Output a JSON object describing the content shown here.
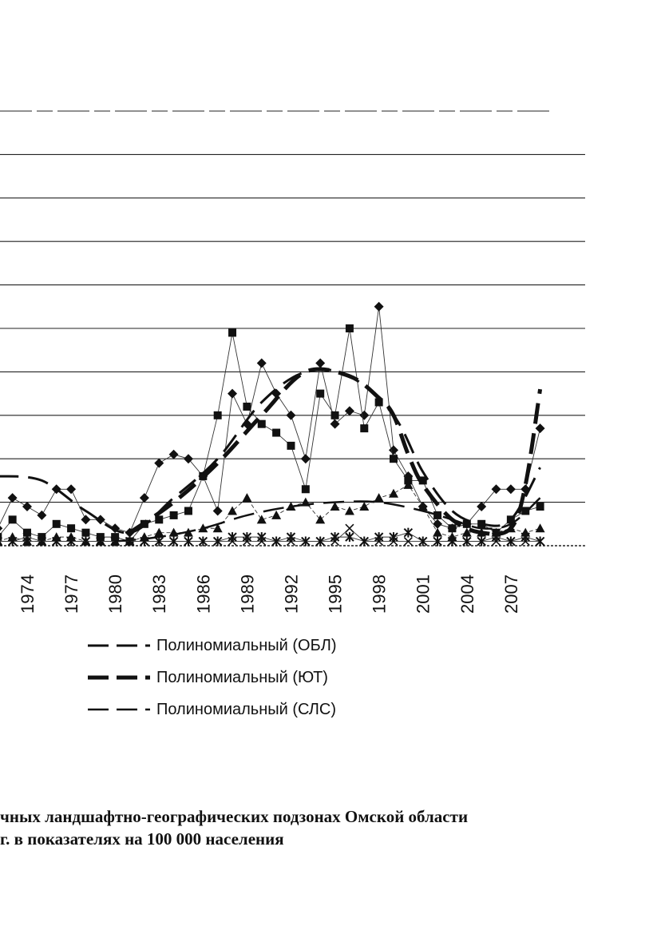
{
  "chart_data": {
    "type": "line",
    "x": [
      1972,
      1973,
      1974,
      1975,
      1976,
      1977,
      1978,
      1979,
      1980,
      1981,
      1982,
      1983,
      1984,
      1985,
      1986,
      1987,
      1988,
      1989,
      1990,
      1991,
      1992,
      1993,
      1994,
      1995,
      1996,
      1997,
      1998,
      1999,
      2000,
      2001,
      2002,
      2003,
      2004,
      2005,
      2006,
      2007,
      2008,
      2009
    ],
    "x_tick_labels": [
      "1974",
      "1977",
      "1980",
      "1983",
      "1986",
      "1989",
      "1992",
      "1995",
      "1998",
      "2001",
      "2004",
      "2007"
    ],
    "x_tick_values": [
      1974,
      1977,
      1980,
      1983,
      1986,
      1989,
      1992,
      1995,
      1998,
      2001,
      2004,
      2007
    ],
    "ylim": [
      0,
      10
    ],
    "grid": true,
    "series": [
      {
        "marker": "diamond",
        "values": [
          0.4,
          1.1,
          0.9,
          0.7,
          1.3,
          1.3,
          0.6,
          0.6,
          0.4,
          0.3,
          1.1,
          1.9,
          2.1,
          2.0,
          1.6,
          0.8,
          3.5,
          2.8,
          4.2,
          3.5,
          3.0,
          2.0,
          4.2,
          2.8,
          3.1,
          3.0,
          5.5,
          2.2,
          1.6,
          0.9,
          0.5,
          0.4,
          0.5,
          0.9,
          1.3,
          1.3,
          1.3,
          2.7
        ]
      },
      {
        "marker": "square",
        "values": [
          0.2,
          0.6,
          0.3,
          0.2,
          0.5,
          0.4,
          0.3,
          0.2,
          0.2,
          0.1,
          0.5,
          0.6,
          0.7,
          0.8,
          1.6,
          3.0,
          4.9,
          3.2,
          2.8,
          2.6,
          2.3,
          1.3,
          3.5,
          3.0,
          5.0,
          2.7,
          3.3,
          2.0,
          1.5,
          1.5,
          0.7,
          0.4,
          0.5,
          0.5,
          0.3,
          0.6,
          0.8,
          0.9
        ]
      },
      {
        "marker": "triangle",
        "values": [
          0.1,
          0.2,
          0.1,
          0.1,
          0.2,
          0.2,
          0.1,
          0.1,
          0.1,
          0.1,
          0.2,
          0.3,
          0.3,
          0.3,
          0.4,
          0.4,
          0.8,
          1.1,
          0.6,
          0.7,
          0.9,
          1.0,
          0.6,
          0.9,
          0.8,
          0.9,
          1.1,
          1.2,
          1.4,
          0.9,
          0.3,
          0.2,
          0.3,
          0.3,
          0.3,
          0.4,
          0.3,
          0.4
        ]
      },
      {
        "marker": "star",
        "values": [
          0.1,
          0.1,
          0.1,
          0.1,
          0.1,
          0.1,
          0.1,
          0.1,
          0.1,
          0.1,
          0.1,
          0.1,
          0.1,
          0.1,
          0.1,
          0.1,
          0.2,
          0.2,
          0.2,
          0.1,
          0.2,
          0.1,
          0.1,
          0.2,
          0.2,
          0.1,
          0.2,
          0.2,
          0.3,
          0.1,
          0.1,
          0.1,
          0.1,
          0.1,
          0.2,
          0.1,
          0.2,
          0.1
        ]
      },
      {
        "marker": "x",
        "values": [
          0.1,
          0.1,
          0.2,
          0.1,
          0.1,
          0.1,
          0.1,
          0.1,
          0.1,
          0.1,
          0.1,
          0.1,
          0.1,
          0.1,
          0.1,
          0.1,
          0.1,
          0.1,
          0.1,
          0.1,
          0.1,
          0.1,
          0.1,
          0.1,
          0.4,
          0.1,
          0.1,
          0.1,
          0.1,
          0.1,
          0.1,
          0.1,
          0.1,
          0.1,
          0.1,
          0.1,
          0.1,
          0.1
        ]
      }
    ],
    "trendlines": [
      {
        "name": "Полиномиальный (ОБЛ)",
        "x": [
          1972,
          1975,
          1978,
          1981,
          1984,
          1987,
          1990,
          1993,
          1996,
          1999,
          2001,
          2003,
          2005,
          2007,
          2009
        ],
        "values": [
          1.6,
          1.5,
          0.8,
          0.3,
          1.1,
          2.0,
          3.3,
          4.0,
          3.9,
          3.0,
          1.7,
          0.8,
          0.5,
          0.6,
          1.8
        ]
      },
      {
        "name": "Полиномиальный (ЮТ)",
        "x": [
          1981,
          1984,
          1987,
          1990,
          1993,
          1996,
          1998,
          1999,
          2000,
          2001,
          2003,
          2005,
          2007,
          2008,
          2009
        ],
        "values": [
          0.3,
          1.0,
          1.9,
          3.0,
          4.0,
          3.9,
          3.4,
          3.0,
          2.1,
          1.4,
          0.6,
          0.3,
          0.4,
          1.4,
          3.6
        ]
      },
      {
        "name": "Полиномиальный (СЛС)",
        "x": [
          1980,
          1983,
          1986,
          1989,
          1992,
          1995,
          1998,
          2001,
          2003,
          2005,
          2007,
          2009
        ],
        "values": [
          0.1,
          0.2,
          0.4,
          0.7,
          0.9,
          1.0,
          1.0,
          0.8,
          0.6,
          0.4,
          0.5,
          1.1
        ]
      }
    ]
  },
  "caption": {
    "line1": "чных ландшафтно-географических подзонах Омской области",
    "line2": "г. в показателях на 100 000 населения"
  }
}
